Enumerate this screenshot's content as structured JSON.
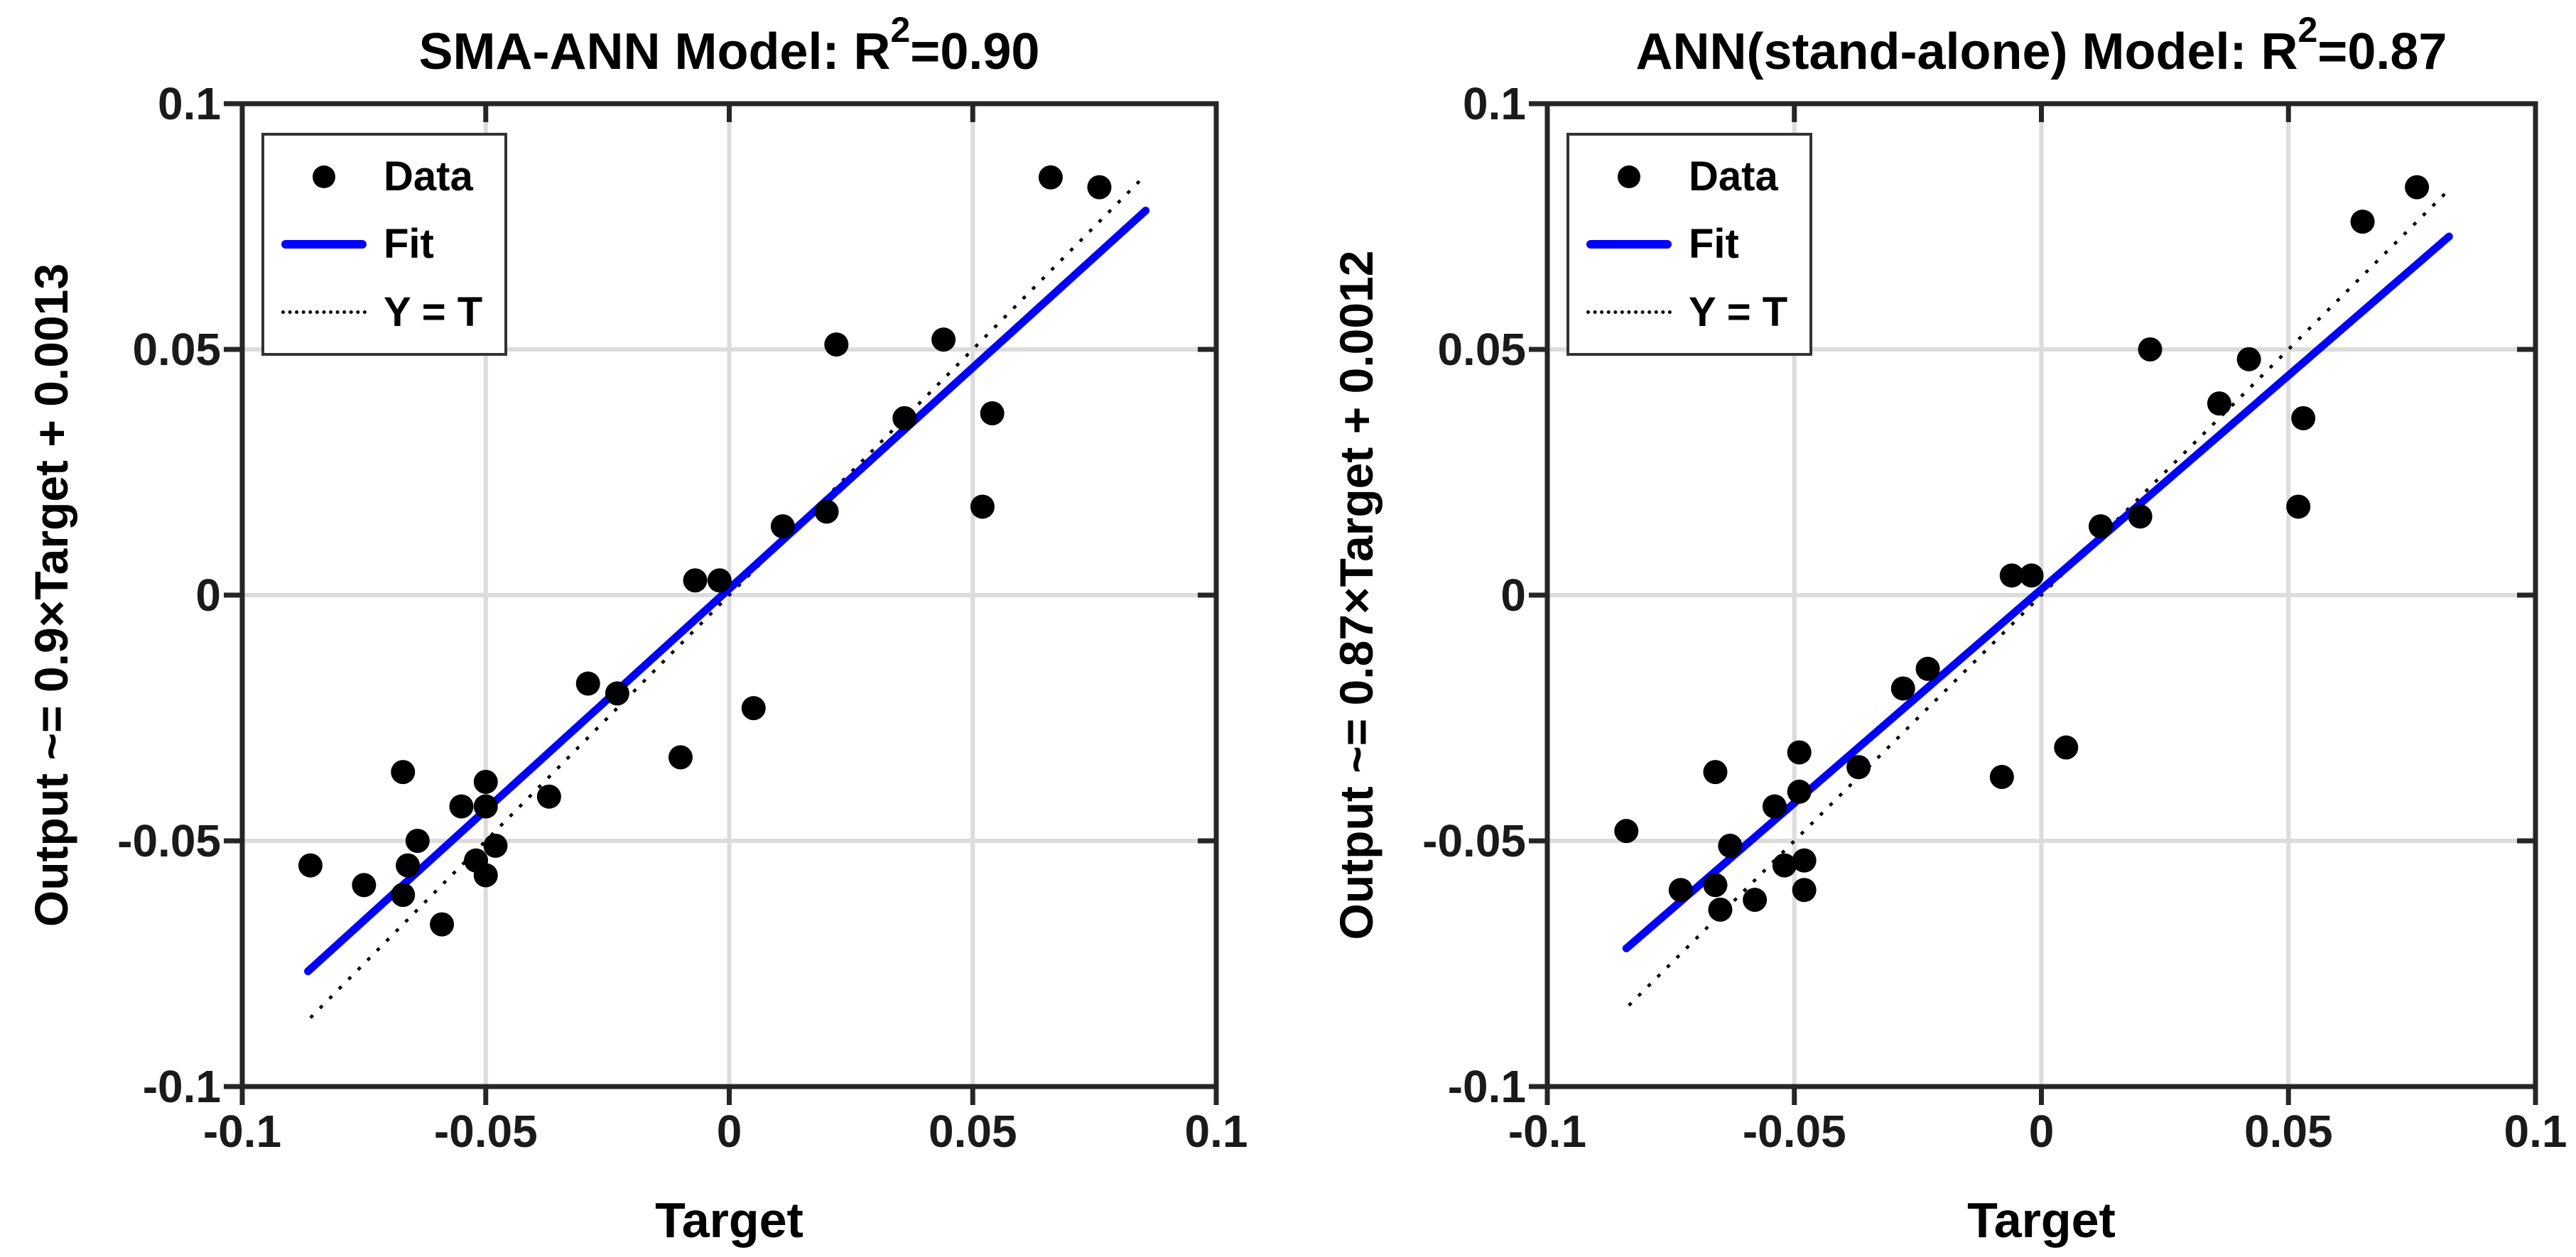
{
  "figure": {
    "background": "#ffffff",
    "type": "matlab-regression-figure"
  },
  "chart_data": [
    {
      "type": "scatter",
      "title": {
        "prefix": "SMA-ANN Model: R",
        "sup": "2",
        "suffix": "=0.90"
      },
      "xlabel": "Target",
      "ylabel": "Output ~= 0.9×Target + 0.0013",
      "legend": [
        {
          "label": "Data",
          "marker": "dot"
        },
        {
          "label": "Fit",
          "marker": "line"
        },
        {
          "label": "Y = T",
          "marker": "dotted"
        }
      ],
      "legend_position": "top-left",
      "grid": true,
      "axes": {
        "xlim": [
          -0.1,
          0.1
        ],
        "ylim": [
          -0.1,
          0.1
        ],
        "xticks": {
          "values": [
            -0.1,
            -0.05,
            0,
            0.05,
            0.1
          ],
          "labels": [
            "-0.1",
            "-0.05",
            "0",
            "0.05",
            "0.1"
          ]
        },
        "yticks": {
          "values": [
            -0.1,
            -0.05,
            0,
            0.05,
            0.1
          ],
          "labels": [
            "-0.1",
            "-0.05",
            "0",
            "0.05",
            "0.1"
          ]
        }
      },
      "fit": {
        "slope": 0.9,
        "intercept": 0.0013,
        "x_range": [
          -0.0865,
          0.0855
        ]
      },
      "identity": {
        "x_range": [
          -0.086,
          0.0855
        ]
      },
      "points": [
        [
          0.066,
          0.085
        ],
        [
          0.076,
          0.083
        ],
        [
          0.022,
          0.051
        ],
        [
          0.044,
          0.052
        ],
        [
          0.036,
          0.036
        ],
        [
          0.054,
          0.037
        ],
        [
          0.052,
          0.018
        ],
        [
          0.02,
          0.017
        ],
        [
          0.011,
          0.014
        ],
        [
          -0.007,
          0.003
        ],
        [
          -0.002,
          0.003
        ],
        [
          -0.029,
          -0.018
        ],
        [
          -0.023,
          -0.02
        ],
        [
          0.005,
          -0.023
        ],
        [
          -0.01,
          -0.033
        ],
        [
          -0.067,
          -0.036
        ],
        [
          -0.05,
          -0.038
        ],
        [
          -0.037,
          -0.041
        ],
        [
          -0.055,
          -0.043
        ],
        [
          -0.05,
          -0.043
        ],
        [
          -0.064,
          -0.05
        ],
        [
          -0.048,
          -0.051
        ],
        [
          -0.086,
          -0.055
        ],
        [
          -0.066,
          -0.055
        ],
        [
          -0.052,
          -0.054
        ],
        [
          -0.05,
          -0.057
        ],
        [
          -0.075,
          -0.059
        ],
        [
          -0.067,
          -0.061
        ],
        [
          -0.059,
          -0.067
        ]
      ],
      "colors": {
        "fit_line": "#0000ff",
        "data_marker": "#000000",
        "identity_line": "#000000",
        "grid": "#dcdcdc",
        "axis": "#262626",
        "tick_label": "#1a1a1a"
      }
    },
    {
      "type": "scatter",
      "title": {
        "prefix": "ANN(stand-alone) Model: R",
        "sup": "2",
        "suffix": "=0.87"
      },
      "xlabel": "Target",
      "ylabel": "Output ~= 0.87×Target + 0.0012",
      "legend": [
        {
          "label": "Data",
          "marker": "dot"
        },
        {
          "label": "Fit",
          "marker": "line"
        },
        {
          "label": "Y = T",
          "marker": "dotted"
        }
      ],
      "legend_position": "top-left",
      "grid": true,
      "axes": {
        "xlim": [
          -0.1,
          0.1
        ],
        "ylim": [
          -0.1,
          0.1
        ],
        "xticks": {
          "values": [
            -0.1,
            -0.05,
            0,
            0.05,
            0.1
          ],
          "labels": [
            "-0.1",
            "-0.05",
            "0",
            "0.05",
            "0.1"
          ]
        },
        "yticks": {
          "values": [
            -0.1,
            -0.05,
            0,
            0.05,
            0.1
          ],
          "labels": [
            "-0.1",
            "-0.05",
            "0",
            "0.05",
            "0.1"
          ]
        }
      },
      "fit": {
        "slope": 0.87,
        "intercept": 0.0012,
        "x_range": [
          -0.084,
          0.0825
        ]
      },
      "identity": {
        "x_range": [
          -0.0835,
          0.0825
        ]
      },
      "points": [
        [
          0.076,
          0.083
        ],
        [
          0.065,
          0.076
        ],
        [
          0.022,
          0.05
        ],
        [
          0.042,
          0.048
        ],
        [
          0.036,
          0.039
        ],
        [
          0.053,
          0.036
        ],
        [
          0.052,
          0.018
        ],
        [
          0.02,
          0.016
        ],
        [
          0.012,
          0.014
        ],
        [
          -0.006,
          0.004
        ],
        [
          -0.002,
          0.004
        ],
        [
          -0.023,
          -0.015
        ],
        [
          -0.028,
          -0.019
        ],
        [
          0.005,
          -0.031
        ],
        [
          -0.008,
          -0.037
        ],
        [
          -0.049,
          -0.032
        ],
        [
          -0.037,
          -0.035
        ],
        [
          -0.066,
          -0.036
        ],
        [
          -0.084,
          -0.048
        ],
        [
          -0.054,
          -0.043
        ],
        [
          -0.049,
          -0.04
        ],
        [
          -0.063,
          -0.051
        ],
        [
          -0.052,
          -0.055
        ],
        [
          -0.048,
          -0.054
        ],
        [
          -0.073,
          -0.06
        ],
        [
          -0.066,
          -0.059
        ],
        [
          -0.065,
          -0.064
        ],
        [
          -0.058,
          -0.062
        ],
        [
          -0.048,
          -0.06
        ]
      ],
      "colors": {
        "fit_line": "#0000ff",
        "data_marker": "#000000",
        "identity_line": "#000000",
        "grid": "#dcdcdc",
        "axis": "#262626",
        "tick_label": "#1a1a1a"
      }
    }
  ]
}
